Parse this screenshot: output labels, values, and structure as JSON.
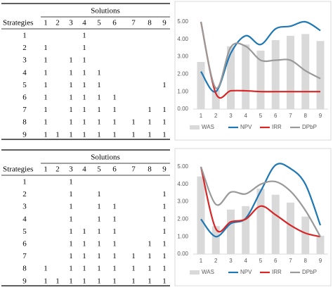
{
  "tables": [
    {
      "title": "Solutions",
      "header": [
        "Strategies",
        1,
        2,
        3,
        4,
        5,
        6,
        7,
        8,
        9
      ],
      "rows": [
        [
          1,
          null,
          null,
          null,
          1,
          null,
          null,
          null,
          null,
          null
        ],
        [
          2,
          1,
          null,
          null,
          1,
          null,
          null,
          null,
          null,
          null
        ],
        [
          3,
          1,
          null,
          1,
          1,
          null,
          null,
          null,
          null,
          null
        ],
        [
          4,
          1,
          null,
          1,
          1,
          1,
          null,
          null,
          null,
          null
        ],
        [
          5,
          1,
          null,
          1,
          1,
          1,
          null,
          null,
          null,
          1
        ],
        [
          6,
          1,
          null,
          1,
          1,
          1,
          1,
          null,
          null,
          null
        ],
        [
          7,
          1,
          null,
          1,
          1,
          1,
          1,
          null,
          1,
          1
        ],
        [
          8,
          1,
          null,
          1,
          1,
          1,
          1,
          1,
          1,
          1
        ],
        [
          9,
          1,
          1,
          1,
          1,
          1,
          1,
          1,
          1,
          1
        ]
      ]
    },
    {
      "title": "Solutions",
      "header": [
        "Strategies",
        1,
        2,
        3,
        4,
        5,
        6,
        7,
        8,
        9
      ],
      "rows": [
        [
          1,
          null,
          null,
          1,
          null,
          null,
          null,
          null,
          null,
          null
        ],
        [
          2,
          null,
          null,
          1,
          null,
          1,
          null,
          null,
          null,
          1
        ],
        [
          3,
          null,
          null,
          1,
          null,
          1,
          1,
          null,
          null,
          1
        ],
        [
          4,
          null,
          null,
          1,
          null,
          1,
          1,
          null,
          null,
          1
        ],
        [
          5,
          null,
          null,
          1,
          1,
          1,
          1,
          null,
          null,
          1
        ],
        [
          6,
          null,
          null,
          1,
          1,
          1,
          1,
          null,
          1,
          1
        ],
        [
          7,
          null,
          null,
          1,
          1,
          1,
          1,
          1,
          1,
          1
        ],
        [
          8,
          1,
          null,
          1,
          1,
          1,
          1,
          1,
          1,
          1
        ],
        [
          9,
          1,
          1,
          1,
          1,
          1,
          1,
          1,
          1,
          1
        ]
      ]
    }
  ],
  "chart_data": [
    {
      "type": "bar-line",
      "categories": [
        1,
        2,
        3,
        4,
        5,
        6,
        7,
        8,
        9
      ],
      "ylim": [
        0,
        5
      ],
      "yticks": [
        {
          "value": 0,
          "label": "0.00"
        },
        {
          "value": 1,
          "label": "1.00"
        },
        {
          "value": 2,
          "label": "2.00"
        },
        {
          "value": 3,
          "label": "3.00"
        },
        {
          "value": 4,
          "label": "4.00"
        },
        {
          "value": 5,
          "label": "5.00"
        }
      ],
      "grid": false,
      "series": [
        {
          "name": "WAS",
          "color": "#d9d9d9",
          "kind": "bar",
          "values": [
            2.7,
            1.1,
            3.6,
            3.7,
            3.35,
            3.95,
            4.2,
            4.3,
            3.9
          ]
        },
        {
          "name": "NPV",
          "color": "#1f77b4",
          "kind": "line",
          "values": [
            2.15,
            1.0,
            3.2,
            4.2,
            3.7,
            4.6,
            4.75,
            5.0,
            4.5
          ]
        },
        {
          "name": "IRR",
          "color": "#d62728",
          "kind": "line",
          "values": [
            5.0,
            0.9,
            1.05,
            1.05,
            1.0,
            1.0,
            1.0,
            1.0,
            1.0
          ]
        },
        {
          "name": "DPbP",
          "color": "#999999",
          "kind": "line",
          "values": [
            5.0,
            1.2,
            3.55,
            3.6,
            2.8,
            2.8,
            2.8,
            2.2,
            1.75
          ]
        }
      ]
    },
    {
      "type": "bar-line",
      "categories": [
        1,
        2,
        3,
        4,
        5,
        6,
        7,
        8,
        9
      ],
      "ylim": [
        0,
        5
      ],
      "yticks": [
        {
          "value": 0,
          "label": "0.00"
        },
        {
          "value": 1,
          "label": "1.00"
        },
        {
          "value": 2,
          "label": "2.00"
        },
        {
          "value": 3,
          "label": "3.00"
        },
        {
          "value": 4,
          "label": "4.00"
        },
        {
          "value": 5,
          "label": "5.00"
        }
      ],
      "grid": false,
      "series": [
        {
          "name": "WAS",
          "color": "#d9d9d9",
          "kind": "bar",
          "values": [
            4.45,
            1.6,
            2.55,
            2.75,
            3.75,
            3.4,
            2.95,
            2.15,
            1.05
          ]
        },
        {
          "name": "NPV",
          "color": "#1f77b4",
          "kind": "line",
          "values": [
            2.0,
            1.0,
            1.75,
            2.05,
            3.6,
            5.1,
            4.9,
            4.0,
            1.65
          ]
        },
        {
          "name": "IRR",
          "color": "#d62728",
          "kind": "line",
          "values": [
            5.0,
            1.45,
            1.85,
            2.0,
            2.75,
            2.25,
            1.65,
            1.2,
            1.0
          ]
        },
        {
          "name": "DPbP",
          "color": "#999999",
          "kind": "line",
          "values": [
            5.0,
            2.85,
            3.55,
            3.45,
            4.0,
            4.15,
            3.6,
            2.5,
            1.0
          ]
        }
      ]
    }
  ]
}
